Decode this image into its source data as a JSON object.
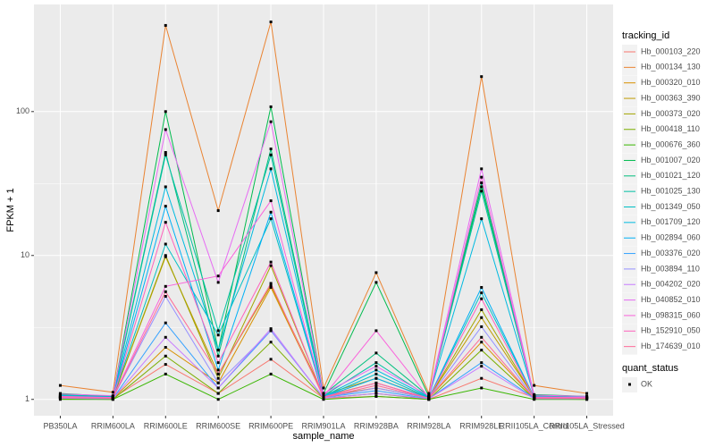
{
  "chart_data": {
    "type": "line",
    "x_label": "sample_name",
    "y_label": "FPKM + 1",
    "log_y": true,
    "grid": true,
    "ylim": [
      0.77,
      555
    ],
    "yticks": [
      1,
      10,
      100
    ],
    "point_color": "#000000",
    "legend_title": "tracking_id",
    "legend2_title": "quant_status",
    "legend2_entries": [
      "OK"
    ],
    "categories": [
      "PB350LA",
      "RRIM600LA",
      "RRIM600LE",
      "RRIM600SE",
      "RRIM600PE",
      "RRIM901LA",
      "RRIM928BA",
      "RRIM928LA",
      "RRIM928LE",
      "RRII105LA_Control",
      "RRII105LA_Stressed"
    ],
    "series": [
      {
        "name": "Hb_000103_220",
        "color": "#F8766D",
        "values": [
          1.05,
          1.02,
          1.75,
          1.1,
          1.9,
          1.02,
          1.05,
          1.0,
          1.4,
          1.03,
          1.02
        ]
      },
      {
        "name": "Hb_000134_130",
        "color": "#EA8331",
        "values": [
          1.25,
          1.12,
          397,
          20.5,
          420,
          1.2,
          7.6,
          1.1,
          175,
          1.25,
          1.1
        ]
      },
      {
        "name": "Hb_000320_010",
        "color": "#D89000",
        "values": [
          1.02,
          1.01,
          2.3,
          1.3,
          6.0,
          1.05,
          1.2,
          1.02,
          2.5,
          1.02,
          1.01
        ]
      },
      {
        "name": "Hb_000363_390",
        "color": "#C09B00",
        "values": [
          1.03,
          1.02,
          9.8,
          1.5,
          6.2,
          1.08,
          1.4,
          1.03,
          3.7,
          1.04,
          1.02
        ]
      },
      {
        "name": "Hb_000373_020",
        "color": "#A3A500",
        "values": [
          1.04,
          1.02,
          10.0,
          1.4,
          8.5,
          1.05,
          1.3,
          1.02,
          4.2,
          1.03,
          1.03
        ]
      },
      {
        "name": "Hb_000418_110",
        "color": "#7CAE00",
        "values": [
          1.01,
          1.0,
          2.0,
          1.1,
          2.5,
          1.02,
          1.1,
          1.0,
          2.2,
          1.01,
          1.0
        ]
      },
      {
        "name": "Hb_000676_360",
        "color": "#39B600",
        "values": [
          1.0,
          1.0,
          1.5,
          1.0,
          1.5,
          1.0,
          1.05,
          1.0,
          1.2,
          1.0,
          1.0
        ]
      },
      {
        "name": "Hb_001007_020",
        "color": "#00BB4E",
        "values": [
          1.1,
          1.05,
          100,
          2.2,
          108,
          1.1,
          6.5,
          1.05,
          30,
          1.08,
          1.05
        ]
      },
      {
        "name": "Hb_001021_120",
        "color": "#00BF7D",
        "values": [
          1.08,
          1.05,
          52,
          2.0,
          55,
          1.08,
          2.1,
          1.05,
          32,
          1.06,
          1.04
        ]
      },
      {
        "name": "Hb_001025_130",
        "color": "#00C1A3",
        "values": [
          1.07,
          1.04,
          50,
          3.0,
          50,
          1.06,
          1.8,
          1.04,
          28,
          1.05,
          1.04
        ]
      },
      {
        "name": "Hb_001349_050",
        "color": "#00BFC4",
        "values": [
          1.05,
          1.03,
          12,
          2.8,
          18,
          1.04,
          1.5,
          1.03,
          5.5,
          1.04,
          1.03
        ]
      },
      {
        "name": "Hb_001709_120",
        "color": "#00BAE0",
        "values": [
          1.06,
          1.04,
          30,
          2.2,
          40,
          1.05,
          1.6,
          1.04,
          18,
          1.05,
          1.03
        ]
      },
      {
        "name": "Hb_002894_060",
        "color": "#00B0F6",
        "values": [
          1.04,
          1.03,
          22,
          1.6,
          20,
          1.04,
          1.4,
          1.02,
          6.0,
          1.03,
          1.02
        ]
      },
      {
        "name": "Hb_003376_020",
        "color": "#35A2FF",
        "values": [
          1.02,
          1.01,
          3.4,
          1.2,
          3.0,
          1.03,
          1.15,
          1.01,
          1.8,
          1.02,
          1.01
        ]
      },
      {
        "name": "Hb_003894_110",
        "color": "#9590FF",
        "values": [
          1.03,
          1.02,
          5.2,
          1.3,
          3.0,
          1.03,
          1.2,
          1.02,
          3.2,
          1.02,
          1.02
        ]
      },
      {
        "name": "Hb_004202_020",
        "color": "#C77CFF",
        "values": [
          1.02,
          1.01,
          2.7,
          1.2,
          3.1,
          1.02,
          1.1,
          1.01,
          1.7,
          1.01,
          1.01
        ]
      },
      {
        "name": "Hb_040852_010",
        "color": "#E76BF3",
        "values": [
          1.09,
          1.06,
          75,
          6.5,
          85,
          1.1,
          1.7,
          1.06,
          40,
          1.07,
          1.05
        ]
      },
      {
        "name": "Hb_098315_060",
        "color": "#FA62DB",
        "values": [
          1.05,
          1.03,
          6.1,
          7.2,
          24,
          1.05,
          3.0,
          1.03,
          35,
          1.04,
          1.03
        ]
      },
      {
        "name": "Hb_152910_050",
        "color": "#FF62BC",
        "values": [
          1.04,
          1.02,
          17,
          1.8,
          9.0,
          1.04,
          1.3,
          1.02,
          5.0,
          1.03,
          1.02
        ]
      },
      {
        "name": "Hb_174639_010",
        "color": "#FF6A98",
        "values": [
          1.03,
          1.02,
          5.6,
          1.5,
          6.4,
          1.03,
          1.25,
          1.02,
          2.7,
          1.02,
          1.02
        ]
      }
    ]
  }
}
